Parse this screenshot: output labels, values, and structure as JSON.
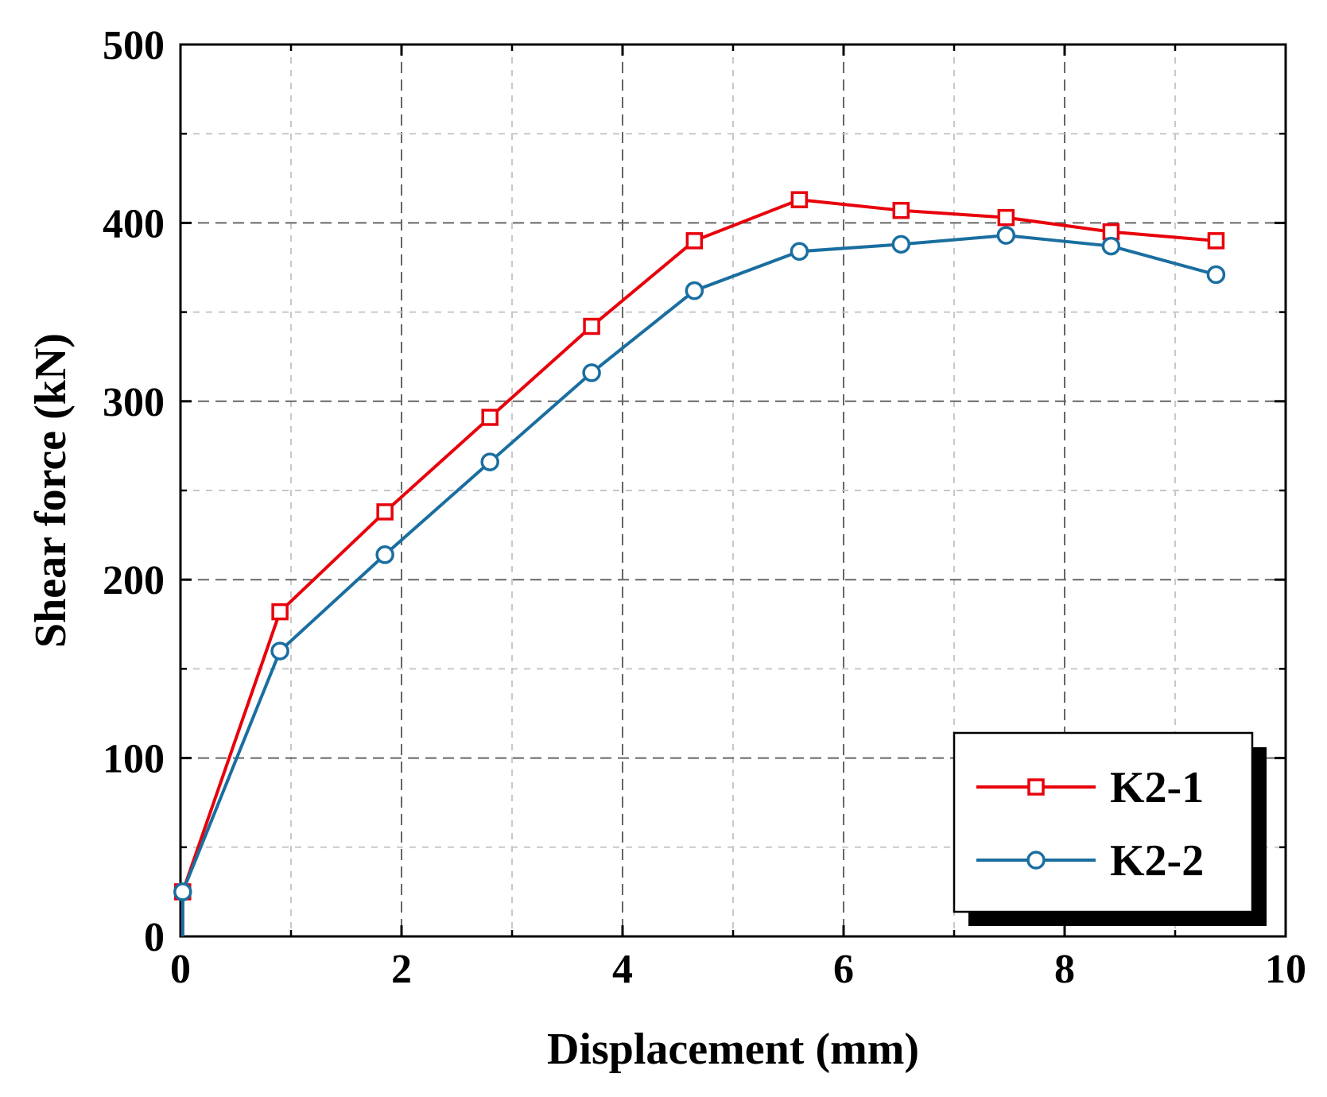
{
  "chart_data": {
    "type": "line",
    "title": "",
    "xlabel": "Displacement (mm)",
    "ylabel": "Shear force (kN)",
    "xlim": [
      0,
      10
    ],
    "ylim": [
      0,
      500
    ],
    "xticks": [
      0,
      2,
      4,
      6,
      8,
      10
    ],
    "yticks": [
      0,
      100,
      200,
      300,
      400,
      500
    ],
    "x_tick_labels": [
      "0",
      "2",
      "4",
      "6",
      "8",
      "10"
    ],
    "y_tick_labels": [
      "0",
      "100",
      "200",
      "300",
      "400",
      "500"
    ],
    "grid": true,
    "legend_position": "bottom-right",
    "series": [
      {
        "name": "K2-1",
        "color": "#e8000b",
        "marker": "square",
        "x": [
          0.02,
          0.9,
          1.85,
          2.8,
          3.72,
          4.65,
          5.6,
          6.52,
          7.47,
          8.42,
          9.37
        ],
        "y": [
          25,
          182,
          238,
          291,
          342,
          390,
          413,
          407,
          403,
          395,
          390
        ]
      },
      {
        "name": "K2-2",
        "color": "#1a6ea0",
        "marker": "circle",
        "x": [
          0.02,
          0.9,
          1.85,
          2.8,
          3.72,
          4.65,
          5.6,
          6.52,
          7.47,
          8.42,
          9.37
        ],
        "y": [
          25,
          160,
          214,
          266,
          316,
          362,
          384,
          388,
          393,
          387,
          371
        ]
      }
    ]
  }
}
